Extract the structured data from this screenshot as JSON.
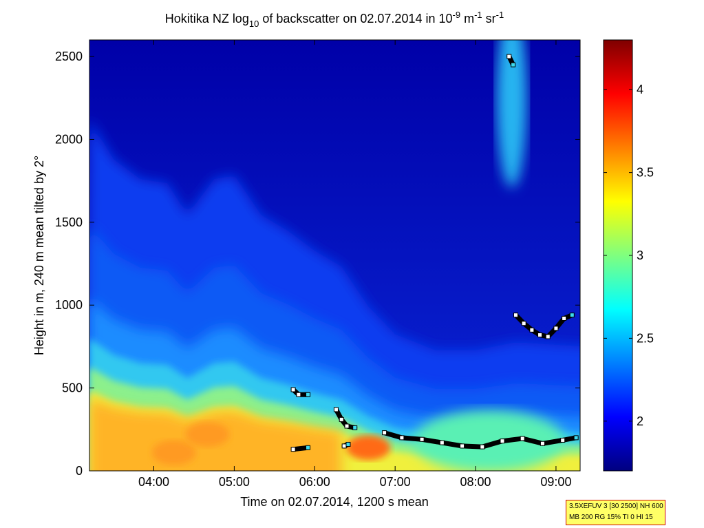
{
  "chart_data": {
    "type": "heatmap",
    "title": {
      "prefix": "Hokitika NZ log",
      "sub": "10",
      "middle": " of backscatter on 02.07.2014 in 10",
      "sup1": "-9",
      "unit1": " m",
      "sup2": "-1",
      "unit2": " sr",
      "sup3": "-1"
    },
    "xlabel": "Time on 02.07.2014, 1200 s mean",
    "ylabel": "Height in m, 240 m mean tilted by 2°",
    "xlim": [
      "03:12",
      "09:18"
    ],
    "ylim": [
      0,
      2600
    ],
    "x_ticks": [
      "04:00",
      "05:00",
      "06:00",
      "07:00",
      "08:00",
      "09:00"
    ],
    "y_ticks": [
      "0",
      "500",
      "1000",
      "1500",
      "2000",
      "2500"
    ],
    "colorbar": {
      "range": [
        1.7,
        4.3
      ],
      "ticks": [
        "2",
        "2.5",
        "3",
        "3.5",
        "4"
      ],
      "colormap": "jet",
      "colors": [
        "#00007f",
        "#0000ff",
        "#007fff",
        "#00ffff",
        "#7fff7f",
        "#ffff00",
        "#ff7f00",
        "#ff0000",
        "#7f0000"
      ]
    },
    "aerosol_layer_top_m": [
      {
        "time": "03:12",
        "h": 800
      },
      {
        "time": "03:30",
        "h": 700
      },
      {
        "time": "03:50",
        "h": 650
      },
      {
        "time": "04:10",
        "h": 640
      },
      {
        "time": "04:25",
        "h": 560
      },
      {
        "time": "04:45",
        "h": 650
      },
      {
        "time": "05:00",
        "h": 660
      },
      {
        "time": "05:20",
        "h": 560
      },
      {
        "time": "05:40",
        "h": 520
      },
      {
        "time": "06:00",
        "h": 470
      },
      {
        "time": "06:20",
        "h": 430
      },
      {
        "time": "06:40",
        "h": 330
      },
      {
        "time": "07:00",
        "h": 260
      },
      {
        "time": "07:30",
        "h": 220
      },
      {
        "time": "08:00",
        "h": 220
      },
      {
        "time": "08:30",
        "h": 240
      },
      {
        "time": "09:18",
        "h": 230
      }
    ],
    "layer_markers_m": [
      {
        "name": "upper-layer",
        "points": [
          {
            "time": "08:30",
            "h": 940
          },
          {
            "time": "08:36",
            "h": 890
          },
          {
            "time": "08:42",
            "h": 850
          },
          {
            "time": "08:48",
            "h": 820
          },
          {
            "time": "08:54",
            "h": 810
          },
          {
            "time": "09:00",
            "h": 860
          },
          {
            "time": "09:06",
            "h": 920
          },
          {
            "time": "09:12",
            "h": 940
          }
        ]
      },
      {
        "name": "top-layer",
        "points": [
          {
            "time": "08:25",
            "h": 2500
          },
          {
            "time": "08:28",
            "h": 2450
          }
        ]
      },
      {
        "name": "layer-0545",
        "points": [
          {
            "time": "05:44",
            "h": 490
          },
          {
            "time": "05:48",
            "h": 460
          },
          {
            "time": "05:55",
            "h": 460
          }
        ]
      },
      {
        "name": "layer-0620",
        "points": [
          {
            "time": "06:16",
            "h": 370
          },
          {
            "time": "06:20",
            "h": 310
          },
          {
            "time": "06:24",
            "h": 270
          },
          {
            "time": "06:30",
            "h": 260
          }
        ]
      },
      {
        "name": "layer-0545-low",
        "points": [
          {
            "time": "05:44",
            "h": 130
          },
          {
            "time": "05:55",
            "h": 140
          }
        ]
      },
      {
        "name": "layer-0625-low",
        "points": [
          {
            "time": "06:22",
            "h": 150
          },
          {
            "time": "06:25",
            "h": 160
          }
        ]
      },
      {
        "name": "boundary-layer",
        "points": [
          {
            "time": "06:52",
            "h": 230
          },
          {
            "time": "07:05",
            "h": 200
          },
          {
            "time": "07:20",
            "h": 190
          },
          {
            "time": "07:35",
            "h": 170
          },
          {
            "time": "07:50",
            "h": 150
          },
          {
            "time": "08:05",
            "h": 145
          },
          {
            "time": "08:20",
            "h": 180
          },
          {
            "time": "08:35",
            "h": 195
          },
          {
            "time": "08:50",
            "h": 165
          },
          {
            "time": "09:05",
            "h": 185
          },
          {
            "time": "09:15",
            "h": 200
          }
        ]
      }
    ]
  },
  "info_box": {
    "line1": "3.5XEFUV 3 [30 2500] NH 600",
    "line2": "MB 200 RG 15% TI 0 HI 15"
  }
}
